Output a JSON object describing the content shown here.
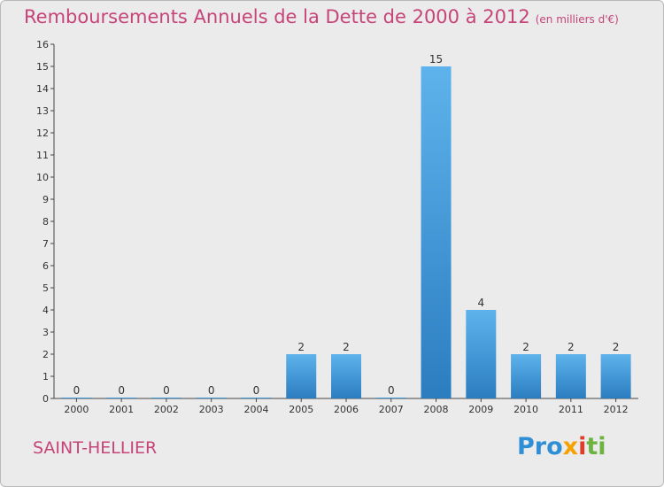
{
  "title": {
    "main": "Remboursements Annuels de la Dette de 2000 à 2012",
    "unit": "(en milliers d'€)"
  },
  "commune": "SAINT-HELLIER",
  "logo": {
    "text": "Proxiti",
    "parts": [
      "Pro",
      "x",
      "i",
      "ti"
    ]
  },
  "colors": {
    "title": "#c64478",
    "bar_top": "#5eb3ec",
    "bar_bottom": "#2b7dc0",
    "background": "#ebebeb"
  },
  "chart_data": {
    "type": "bar",
    "categories": [
      "2000",
      "2001",
      "2002",
      "2003",
      "2004",
      "2005",
      "2006",
      "2007",
      "2008",
      "2009",
      "2010",
      "2011",
      "2012"
    ],
    "values": [
      0,
      0,
      0,
      0,
      0,
      2,
      2,
      0,
      15,
      4,
      2,
      2,
      2
    ],
    "data_labels": [
      "0",
      "0",
      "0",
      "0",
      "0",
      "2",
      "2",
      "0",
      "15",
      "4",
      "2",
      "2",
      "2"
    ],
    "y_ticks": [
      "0",
      "1",
      "2",
      "3",
      "4",
      "5",
      "6",
      "7",
      "8",
      "9",
      "10",
      "11",
      "12",
      "13",
      "14",
      "15",
      "16"
    ],
    "ylim": [
      0,
      16
    ],
    "grid": false
  }
}
